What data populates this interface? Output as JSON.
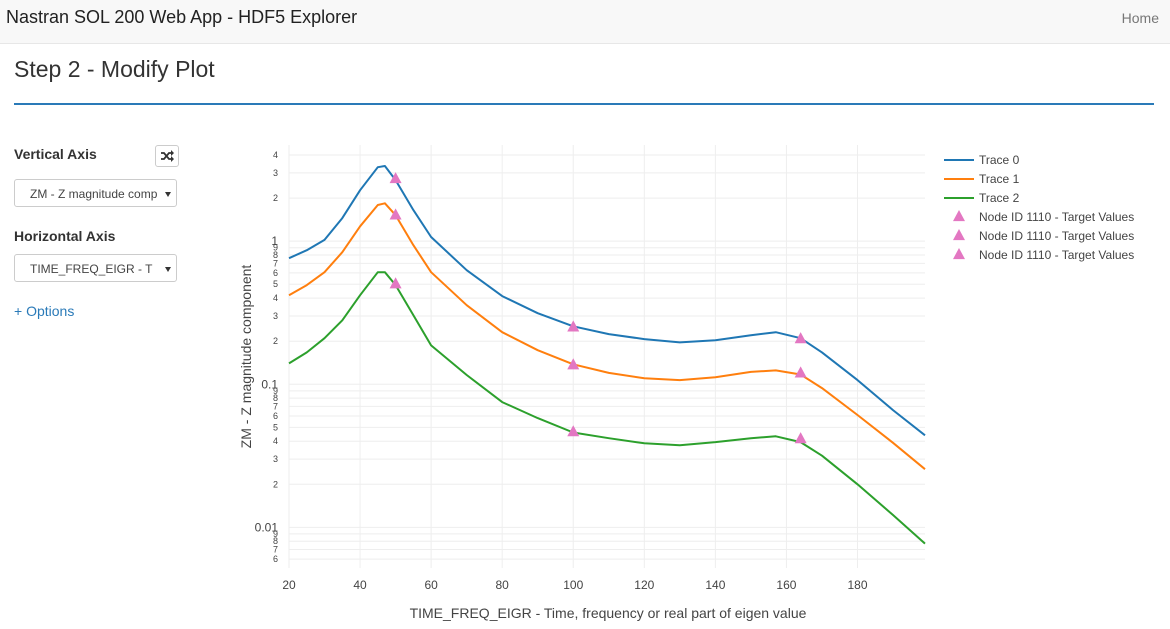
{
  "nav": {
    "brand": "Nastran SOL 200 Web App - HDF5 Explorer",
    "home": "Home"
  },
  "heading": "Step 2 - Modify Plot",
  "sidebar": {
    "vertical_label": "Vertical Axis",
    "vertical_select": "ZM - Z magnitude comp",
    "horizontal_label": "Horizontal Axis",
    "horizontal_select": "TIME_FREQ_EIGR - T",
    "options": "+ Options"
  },
  "chart_data": {
    "type": "line",
    "xlabel": "TIME_FREQ_EIGR - Time, frequency or real part of eigen value",
    "ylabel": "ZM - Z magnitude component",
    "xlim": [
      20,
      199
    ],
    "ylim": [
      0.0052,
      4.7
    ],
    "log_y": true,
    "grid": true,
    "legend": "right",
    "xticks": [
      20,
      40,
      60,
      80,
      100,
      120,
      140,
      160,
      180
    ],
    "yticks": [
      4,
      3,
      2,
      1,
      {
        "value": 0.9,
        "label": "9"
      },
      {
        "value": 0.8,
        "label": "8"
      },
      {
        "value": 0.7,
        "label": "7"
      },
      {
        "value": 0.6,
        "label": "6"
      },
      {
        "value": 0.5,
        "label": "5"
      },
      {
        "value": 0.4,
        "label": "4"
      },
      {
        "value": 0.3,
        "label": "3"
      },
      {
        "value": 0.2,
        "label": "2"
      },
      0.1,
      {
        "value": 0.09,
        "label": "9"
      },
      {
        "value": 0.08,
        "label": "8"
      },
      {
        "value": 0.07,
        "label": "7"
      },
      {
        "value": 0.06,
        "label": "6"
      },
      {
        "value": 0.05,
        "label": "5"
      },
      {
        "value": 0.04,
        "label": "4"
      },
      {
        "value": 0.03,
        "label": "3"
      },
      {
        "value": 0.02,
        "label": "2"
      },
      0.01,
      {
        "value": 0.009,
        "label": "9"
      },
      {
        "value": 0.008,
        "label": "8"
      },
      {
        "value": 0.007,
        "label": "7"
      },
      {
        "value": 0.006,
        "label": "6"
      }
    ],
    "series": [
      {
        "name": "Trace 0",
        "color": "#1f77b4",
        "mode": "lines",
        "x": [
          20,
          25,
          30,
          35,
          40,
          45,
          47,
          50,
          55,
          60,
          70,
          80,
          90,
          100,
          110,
          120,
          130,
          140,
          150,
          157,
          164,
          170,
          180,
          190,
          199
        ],
        "values": [
          0.76,
          0.865,
          1.02,
          1.45,
          2.27,
          3.29,
          3.35,
          2.67,
          1.65,
          1.07,
          0.627,
          0.413,
          0.314,
          0.254,
          0.224,
          0.207,
          0.196,
          0.203,
          0.22,
          0.231,
          0.21,
          0.167,
          0.107,
          0.066,
          0.044
        ]
      },
      {
        "name": "Trace 1",
        "color": "#ff7f0e",
        "mode": "lines",
        "x": [
          20,
          25,
          30,
          35,
          40,
          45,
          47,
          50,
          55,
          60,
          70,
          80,
          90,
          100,
          110,
          120,
          130,
          140,
          150,
          157,
          164,
          170,
          180,
          190,
          199
        ],
        "values": [
          0.419,
          0.493,
          0.607,
          0.838,
          1.27,
          1.79,
          1.84,
          1.52,
          0.938,
          0.607,
          0.357,
          0.231,
          0.173,
          0.138,
          0.12,
          0.11,
          0.107,
          0.112,
          0.122,
          0.125,
          0.117,
          0.094,
          0.061,
          0.039,
          0.0255
        ]
      },
      {
        "name": "Trace 2",
        "color": "#2ca02c",
        "mode": "lines",
        "x": [
          20,
          25,
          30,
          35,
          40,
          45,
          47,
          50,
          55,
          60,
          70,
          80,
          90,
          100,
          110,
          120,
          130,
          140,
          150,
          157,
          164,
          170,
          180,
          190,
          199
        ],
        "values": [
          0.14,
          0.167,
          0.21,
          0.28,
          0.419,
          0.607,
          0.607,
          0.493,
          0.304,
          0.187,
          0.116,
          0.075,
          0.058,
          0.046,
          0.042,
          0.0387,
          0.0375,
          0.0394,
          0.042,
          0.0433,
          0.0394,
          0.0317,
          0.02,
          0.0122,
          0.0077
        ]
      },
      {
        "name": "Node ID 1110 - Target Values",
        "color": "#e377c2",
        "mode": "markers",
        "x": [
          50,
          100,
          164
        ],
        "values": [
          2.76,
          0.254,
          0.21
        ]
      },
      {
        "name": "Node ID 1110 - Target Values",
        "color": "#e377c2",
        "mode": "markers",
        "x": [
          50,
          100,
          164
        ],
        "values": [
          1.54,
          0.138,
          0.121
        ]
      },
      {
        "name": "Node ID 1110 - Target Values",
        "color": "#e377c2",
        "mode": "markers",
        "x": [
          50,
          100,
          164
        ],
        "values": [
          0.508,
          0.047,
          0.042
        ]
      }
    ]
  }
}
